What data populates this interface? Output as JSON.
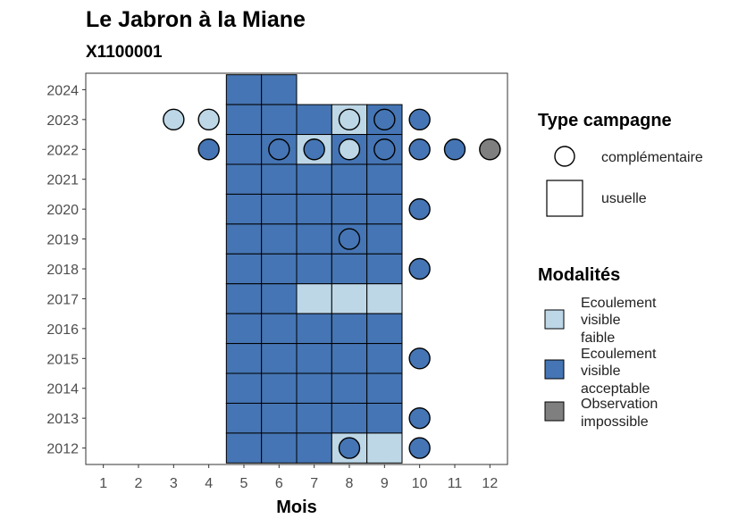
{
  "chart_data": {
    "type": "heatmap",
    "title": "Le Jabron à la Miane",
    "subtitle": "X1100001",
    "xlabel": "Mois",
    "ylabel": "",
    "x_ticks": [
      "1",
      "2",
      "3",
      "4",
      "5",
      "6",
      "7",
      "8",
      "9",
      "10",
      "11",
      "12"
    ],
    "y_ticks": [
      "2012",
      "2013",
      "2014",
      "2015",
      "2016",
      "2017",
      "2018",
      "2019",
      "2020",
      "2021",
      "2022",
      "2023",
      "2024"
    ],
    "xlim": [
      0.5,
      12.5
    ],
    "ylim": [
      2011.45,
      2024.55
    ],
    "legend_type": {
      "title": "Type campagne",
      "items": [
        {
          "key": "complementaire",
          "label": "complémentaire",
          "shape": "circle"
        },
        {
          "key": "usuelle",
          "label": "usuelle",
          "shape": "square"
        }
      ]
    },
    "legend_modalites": {
      "title": "Modalités",
      "items": [
        {
          "key": "faible",
          "label": [
            "Ecoulement",
            "visible",
            "faible"
          ],
          "color": "#bdd7e7"
        },
        {
          "key": "acceptable",
          "label": [
            "Ecoulement",
            "visible",
            "acceptable"
          ],
          "color": "#4575b4"
        },
        {
          "key": "impossible",
          "label": [
            "Observation",
            "impossible"
          ],
          "color": "#7f7f7f"
        }
      ]
    },
    "usuelle": [
      {
        "year": 2024,
        "month": 5,
        "modalite": "acceptable"
      },
      {
        "year": 2024,
        "month": 6,
        "modalite": "acceptable"
      },
      {
        "year": 2023,
        "month": 5,
        "modalite": "acceptable"
      },
      {
        "year": 2023,
        "month": 6,
        "modalite": "acceptable"
      },
      {
        "year": 2023,
        "month": 7,
        "modalite": "acceptable"
      },
      {
        "year": 2023,
        "month": 8,
        "modalite": "faible"
      },
      {
        "year": 2023,
        "month": 9,
        "modalite": "acceptable"
      },
      {
        "year": 2022,
        "month": 5,
        "modalite": "acceptable"
      },
      {
        "year": 2022,
        "month": 6,
        "modalite": "acceptable"
      },
      {
        "year": 2022,
        "month": 7,
        "modalite": "faible"
      },
      {
        "year": 2022,
        "month": 8,
        "modalite": "acceptable"
      },
      {
        "year": 2022,
        "month": 9,
        "modalite": "acceptable"
      },
      {
        "year": 2021,
        "month": 5,
        "modalite": "acceptable"
      },
      {
        "year": 2021,
        "month": 6,
        "modalite": "acceptable"
      },
      {
        "year": 2021,
        "month": 7,
        "modalite": "acceptable"
      },
      {
        "year": 2021,
        "month": 8,
        "modalite": "acceptable"
      },
      {
        "year": 2021,
        "month": 9,
        "modalite": "acceptable"
      },
      {
        "year": 2020,
        "month": 5,
        "modalite": "acceptable"
      },
      {
        "year": 2020,
        "month": 6,
        "modalite": "acceptable"
      },
      {
        "year": 2020,
        "month": 7,
        "modalite": "acceptable"
      },
      {
        "year": 2020,
        "month": 8,
        "modalite": "acceptable"
      },
      {
        "year": 2020,
        "month": 9,
        "modalite": "acceptable"
      },
      {
        "year": 2019,
        "month": 5,
        "modalite": "acceptable"
      },
      {
        "year": 2019,
        "month": 6,
        "modalite": "acceptable"
      },
      {
        "year": 2019,
        "month": 7,
        "modalite": "acceptable"
      },
      {
        "year": 2019,
        "month": 8,
        "modalite": "acceptable"
      },
      {
        "year": 2019,
        "month": 9,
        "modalite": "acceptable"
      },
      {
        "year": 2018,
        "month": 5,
        "modalite": "acceptable"
      },
      {
        "year": 2018,
        "month": 6,
        "modalite": "acceptable"
      },
      {
        "year": 2018,
        "month": 7,
        "modalite": "acceptable"
      },
      {
        "year": 2018,
        "month": 8,
        "modalite": "acceptable"
      },
      {
        "year": 2018,
        "month": 9,
        "modalite": "acceptable"
      },
      {
        "year": 2017,
        "month": 5,
        "modalite": "acceptable"
      },
      {
        "year": 2017,
        "month": 6,
        "modalite": "acceptable"
      },
      {
        "year": 2017,
        "month": 7,
        "modalite": "faible"
      },
      {
        "year": 2017,
        "month": 8,
        "modalite": "faible"
      },
      {
        "year": 2017,
        "month": 9,
        "modalite": "faible"
      },
      {
        "year": 2016,
        "month": 5,
        "modalite": "acceptable"
      },
      {
        "year": 2016,
        "month": 6,
        "modalite": "acceptable"
      },
      {
        "year": 2016,
        "month": 7,
        "modalite": "acceptable"
      },
      {
        "year": 2016,
        "month": 8,
        "modalite": "acceptable"
      },
      {
        "year": 2016,
        "month": 9,
        "modalite": "acceptable"
      },
      {
        "year": 2015,
        "month": 5,
        "modalite": "acceptable"
      },
      {
        "year": 2015,
        "month": 6,
        "modalite": "acceptable"
      },
      {
        "year": 2015,
        "month": 7,
        "modalite": "acceptable"
      },
      {
        "year": 2015,
        "month": 8,
        "modalite": "acceptable"
      },
      {
        "year": 2015,
        "month": 9,
        "modalite": "acceptable"
      },
      {
        "year": 2014,
        "month": 5,
        "modalite": "acceptable"
      },
      {
        "year": 2014,
        "month": 6,
        "modalite": "acceptable"
      },
      {
        "year": 2014,
        "month": 7,
        "modalite": "acceptable"
      },
      {
        "year": 2014,
        "month": 8,
        "modalite": "acceptable"
      },
      {
        "year": 2014,
        "month": 9,
        "modalite": "acceptable"
      },
      {
        "year": 2013,
        "month": 5,
        "modalite": "acceptable"
      },
      {
        "year": 2013,
        "month": 6,
        "modalite": "acceptable"
      },
      {
        "year": 2013,
        "month": 7,
        "modalite": "acceptable"
      },
      {
        "year": 2013,
        "month": 8,
        "modalite": "acceptable"
      },
      {
        "year": 2013,
        "month": 9,
        "modalite": "acceptable"
      },
      {
        "year": 2012,
        "month": 5,
        "modalite": "acceptable"
      },
      {
        "year": 2012,
        "month": 6,
        "modalite": "acceptable"
      },
      {
        "year": 2012,
        "month": 7,
        "modalite": "acceptable"
      },
      {
        "year": 2012,
        "month": 8,
        "modalite": "faible"
      },
      {
        "year": 2012,
        "month": 9,
        "modalite": "faible"
      }
    ],
    "complementaire": [
      {
        "year": 2023,
        "month": 3,
        "modalite": "faible"
      },
      {
        "year": 2023,
        "month": 4,
        "modalite": "faible"
      },
      {
        "year": 2023,
        "month": 8,
        "modalite": "faible"
      },
      {
        "year": 2023,
        "month": 9,
        "modalite": "acceptable"
      },
      {
        "year": 2023,
        "month": 10,
        "modalite": "acceptable"
      },
      {
        "year": 2022,
        "month": 4,
        "modalite": "acceptable"
      },
      {
        "year": 2022,
        "month": 6,
        "modalite": "acceptable"
      },
      {
        "year": 2022,
        "month": 7,
        "modalite": "acceptable"
      },
      {
        "year": 2022,
        "month": 8,
        "modalite": "faible"
      },
      {
        "year": 2022,
        "month": 9,
        "modalite": "acceptable"
      },
      {
        "year": 2022,
        "month": 10,
        "modalite": "acceptable"
      },
      {
        "year": 2022,
        "month": 11,
        "modalite": "acceptable"
      },
      {
        "year": 2022,
        "month": 12,
        "modalite": "impossible"
      },
      {
        "year": 2020,
        "month": 10,
        "modalite": "acceptable"
      },
      {
        "year": 2019,
        "month": 8,
        "modalite": "acceptable"
      },
      {
        "year": 2018,
        "month": 10,
        "modalite": "acceptable"
      },
      {
        "year": 2015,
        "month": 10,
        "modalite": "acceptable"
      },
      {
        "year": 2013,
        "month": 10,
        "modalite": "acceptable"
      },
      {
        "year": 2012,
        "month": 8,
        "modalite": "acceptable"
      },
      {
        "year": 2012,
        "month": 10,
        "modalite": "acceptable"
      }
    ]
  }
}
